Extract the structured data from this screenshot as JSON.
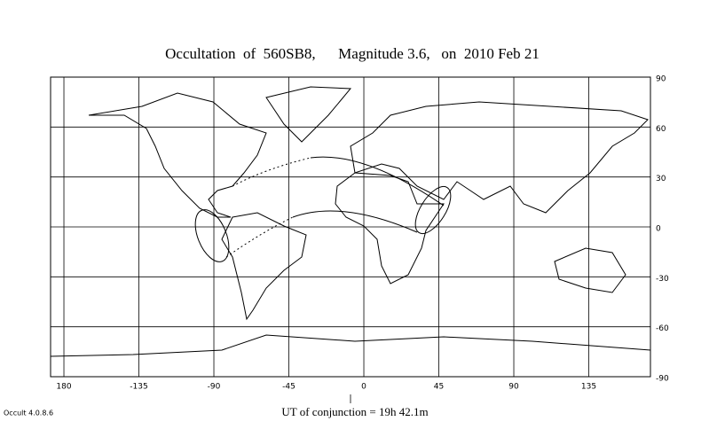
{
  "map": {
    "title": "Occultation  of  560SB8,      Magnitude 3.6,   on  2010 Feb 21",
    "xlim": [
      -188,
      172
    ],
    "ylim": [
      -90,
      90
    ],
    "xticks": [
      {
        "value": -180,
        "label": "180"
      },
      -135,
      -90,
      -45,
      0,
      45,
      90,
      135
    ],
    "yticks": [
      90,
      60,
      30,
      0,
      -30,
      -60,
      -90
    ],
    "footer": "UT of conjunction = 19h 42.1m",
    "version": "Occult 4.0.8.6"
  }
}
